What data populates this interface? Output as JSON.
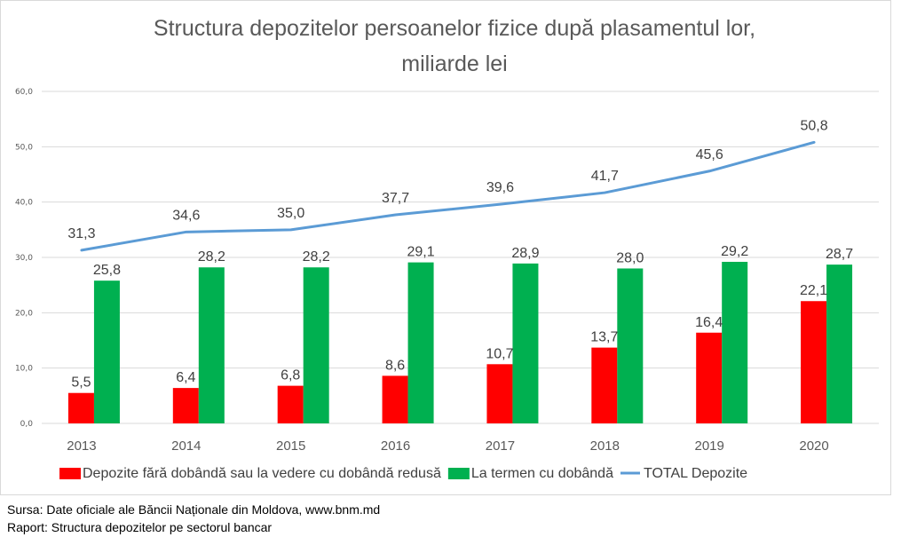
{
  "chart_data": {
    "type": "bar",
    "title": "Structura depozitelor persoanelor fizice după plasamentul lor,",
    "title_line2": "miliarde lei",
    "xlabel": "",
    "ylabel": "",
    "categories": [
      "2013",
      "2014",
      "2015",
      "2016",
      "2017",
      "2018",
      "2019",
      "2020"
    ],
    "ylim": [
      0,
      60
    ],
    "yticks": [
      0,
      10,
      20,
      30,
      40,
      50,
      60
    ],
    "ytick_labels": [
      "0,0",
      "10,0",
      "20,0",
      "30,0",
      "40,0",
      "50,0",
      "60,0"
    ],
    "grid": true,
    "legend_position": "bottom",
    "series": [
      {
        "name": "Depozite fără dobândă sau la vedere cu dobândă redusă",
        "type": "bar",
        "color": "#ff0000",
        "values": [
          5.5,
          6.4,
          6.8,
          8.6,
          10.7,
          13.7,
          16.4,
          22.1
        ],
        "labels": [
          "5,5",
          "6,4",
          "6,8",
          "8,6",
          "10,7",
          "13,7",
          "16,4",
          "22,1"
        ]
      },
      {
        "name": "La termen cu dobândă",
        "type": "bar",
        "color": "#00b050",
        "values": [
          25.8,
          28.2,
          28.2,
          29.1,
          28.9,
          28.0,
          29.2,
          28.7
        ],
        "labels": [
          "25,8",
          "28,2",
          "28,2",
          "29,1",
          "28,9",
          "28,0",
          "29,2",
          "28,7"
        ]
      },
      {
        "name": "TOTAL Depozite",
        "type": "line",
        "color": "#5b9bd5",
        "values": [
          31.3,
          34.6,
          35.0,
          37.7,
          39.6,
          41.7,
          45.6,
          50.8
        ],
        "labels": [
          "31,3",
          "34,6",
          "35,0",
          "37,7",
          "39,6",
          "41,7",
          "45,6",
          "50,8"
        ]
      }
    ]
  },
  "footer": {
    "source": "Sursa: Date oficiale ale Băncii Naționale din Moldova, www.bnm.md",
    "report": "Raport: Structura depozitelor pe sectorul bancar"
  }
}
